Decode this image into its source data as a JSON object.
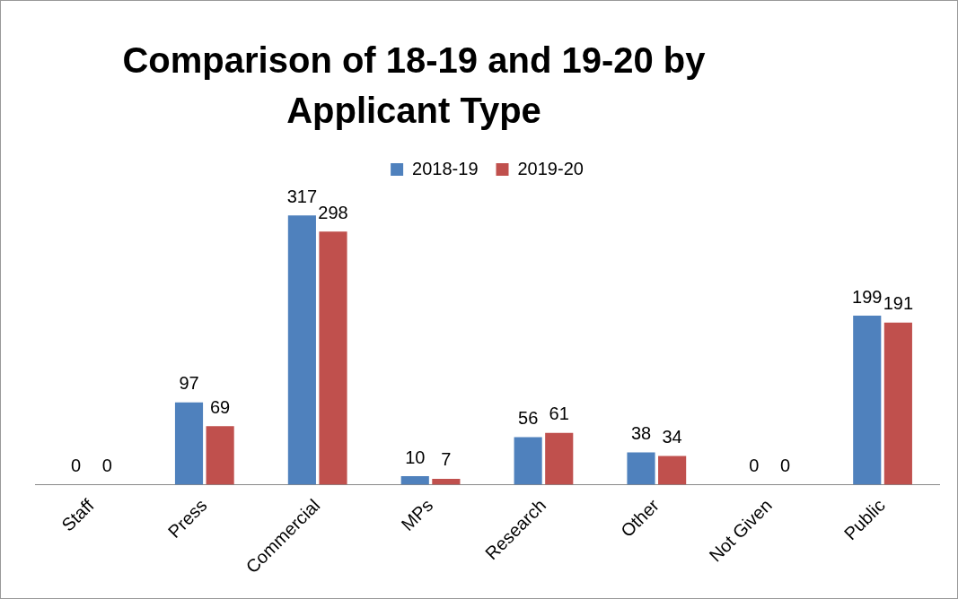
{
  "chart_data": {
    "type": "bar",
    "title": "Comparison of 18-19 and 19-20 by Applicant Type",
    "categories": [
      "Staff",
      "Press",
      "Commercial",
      "MPs",
      "Research",
      "Other",
      "Not Given",
      "Public"
    ],
    "series": [
      {
        "name": "2018-19",
        "color": "#4f81bd",
        "values": [
          0,
          97,
          317,
          10,
          56,
          38,
          0,
          199
        ]
      },
      {
        "name": "2019-20",
        "color": "#c0504d",
        "values": [
          0,
          69,
          298,
          7,
          61,
          34,
          0,
          191
        ]
      }
    ],
    "tick_labels": "x",
    "data_labels": true,
    "legend": "top",
    "grid": false
  }
}
